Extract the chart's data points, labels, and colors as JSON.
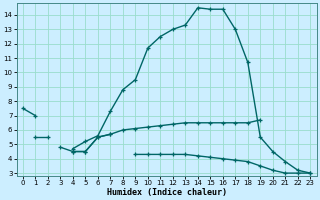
{
  "xlabel": "Humidex (Indice chaleur)",
  "bg_color": "#cceeff",
  "grid_color": "#99ddcc",
  "line_color": "#006666",
  "xlim": [
    -0.5,
    23.5
  ],
  "ylim": [
    2.8,
    14.8
  ],
  "xticks": [
    0,
    1,
    2,
    3,
    4,
    5,
    6,
    7,
    8,
    9,
    10,
    11,
    12,
    13,
    14,
    15,
    16,
    17,
    18,
    19,
    20,
    21,
    22,
    23
  ],
  "yticks": [
    3,
    4,
    5,
    6,
    7,
    8,
    9,
    10,
    11,
    12,
    13,
    14
  ],
  "lines": [
    {
      "segments": [
        {
          "x": [
            0,
            1
          ],
          "y": [
            7.5,
            7.0
          ]
        },
        {
          "x": [
            4,
            5,
            6,
            7,
            8,
            9,
            10,
            11,
            12,
            13,
            14,
            15,
            16,
            17,
            18,
            19,
            20,
            21,
            22,
            23
          ],
          "y": [
            4.7,
            5.2,
            5.6,
            7.3,
            8.8,
            9.5,
            11.7,
            12.5,
            13.0,
            13.3,
            14.5,
            14.4,
            14.4,
            13.0,
            10.7,
            5.5,
            4.5,
            3.8,
            3.2,
            3.0
          ]
        }
      ]
    },
    {
      "segments": [
        {
          "x": [
            1,
            2
          ],
          "y": [
            5.5,
            5.5
          ]
        },
        {
          "x": [
            4,
            5,
            6,
            7,
            8,
            9,
            10,
            11,
            12,
            13,
            14,
            15,
            16,
            17,
            18,
            19
          ],
          "y": [
            4.5,
            4.5,
            5.5,
            5.7,
            6.0,
            6.1,
            6.2,
            6.3,
            6.4,
            6.5,
            6.5,
            6.5,
            6.5,
            6.5,
            6.5,
            6.7
          ]
        }
      ]
    },
    {
      "segments": [
        {
          "x": [
            3,
            4,
            5,
            6,
            7
          ],
          "y": [
            4.8,
            4.5,
            4.5,
            5.5,
            5.7
          ]
        },
        {
          "x": [
            9,
            10,
            11,
            12,
            13,
            14,
            15,
            16,
            17,
            18,
            19,
            20,
            21,
            22,
            23
          ],
          "y": [
            4.3,
            4.3,
            4.3,
            4.3,
            4.3,
            4.2,
            4.1,
            4.0,
            3.9,
            3.8,
            3.5,
            3.2,
            3.0,
            3.0,
            3.0
          ]
        }
      ]
    }
  ]
}
